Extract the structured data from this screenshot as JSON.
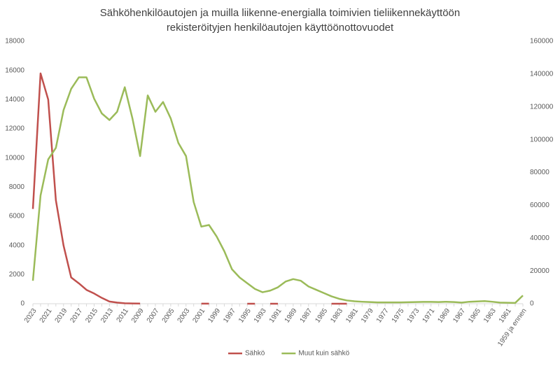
{
  "chart_data": {
    "type": "line",
    "title": "Sähköhenkilöautojen ja muilla liikenne-energialla toimivien tieliikennekäyttöön rekisteröityjen henkilöautojen käyttöönottovuodet",
    "categories": [
      "2023",
      null,
      "2021",
      null,
      "2019",
      null,
      "2017",
      null,
      "2015",
      null,
      "2013",
      null,
      "2011",
      null,
      "2009",
      null,
      "2007",
      null,
      "2005",
      null,
      "2003",
      null,
      "2001",
      null,
      "1999",
      null,
      "1997",
      null,
      "1995",
      null,
      "1993",
      null,
      "1991",
      null,
      "1989",
      null,
      "1987",
      null,
      "1985",
      null,
      "1983",
      null,
      "1981",
      null,
      "1979",
      null,
      "1977",
      null,
      "1975",
      null,
      "1973",
      null,
      "1971",
      null,
      "1969",
      null,
      "1967",
      null,
      "1965",
      null,
      "1963",
      null,
      "1961",
      null,
      "1959 ja ennen"
    ],
    "series": [
      {
        "name": "Sähkö",
        "color": "#c0504d",
        "axis": "y",
        "values": [
          6500,
          15800,
          14000,
          7100,
          4000,
          1800,
          1400,
          950,
          700,
          400,
          150,
          80,
          30,
          20,
          10,
          null,
          null,
          null,
          null,
          null,
          null,
          null,
          5,
          5,
          null,
          null,
          null,
          null,
          2,
          2,
          null,
          2,
          2,
          null,
          null,
          null,
          null,
          null,
          null,
          2,
          2,
          2,
          null,
          null,
          null,
          null,
          null,
          null,
          null,
          null,
          null,
          null,
          null,
          null,
          null,
          null,
          null,
          null,
          null,
          null,
          null,
          null,
          null,
          null,
          null
        ]
      },
      {
        "name": "Muut kuin sähkö",
        "color": "#9bbb59",
        "axis": "y2",
        "values": [
          14000,
          66000,
          88000,
          95000,
          118000,
          131000,
          138000,
          138000,
          125000,
          116000,
          112000,
          117000,
          132000,
          113000,
          90000,
          127000,
          117000,
          123000,
          113000,
          98000,
          90000,
          62000,
          47000,
          48000,
          41000,
          32000,
          21000,
          16000,
          12500,
          9000,
          7000,
          8000,
          10000,
          13500,
          15000,
          14000,
          10500,
          8500,
          6500,
          4500,
          3000,
          2000,
          1500,
          1200,
          1000,
          800,
          800,
          800,
          800,
          900,
          1000,
          1100,
          1100,
          1000,
          1200,
          1000,
          700,
          1200,
          1400,
          1600,
          1200,
          700,
          600,
          500,
          5000
        ]
      }
    ],
    "ylim": [
      0,
      18000
    ],
    "yticks": [
      0,
      2000,
      4000,
      6000,
      8000,
      10000,
      12000,
      14000,
      16000,
      18000
    ],
    "y2lim": [
      0,
      160000
    ],
    "y2ticks": [
      0,
      20000,
      40000,
      60000,
      80000,
      100000,
      120000,
      140000,
      160000
    ],
    "grid": false,
    "legend": "bottom"
  }
}
